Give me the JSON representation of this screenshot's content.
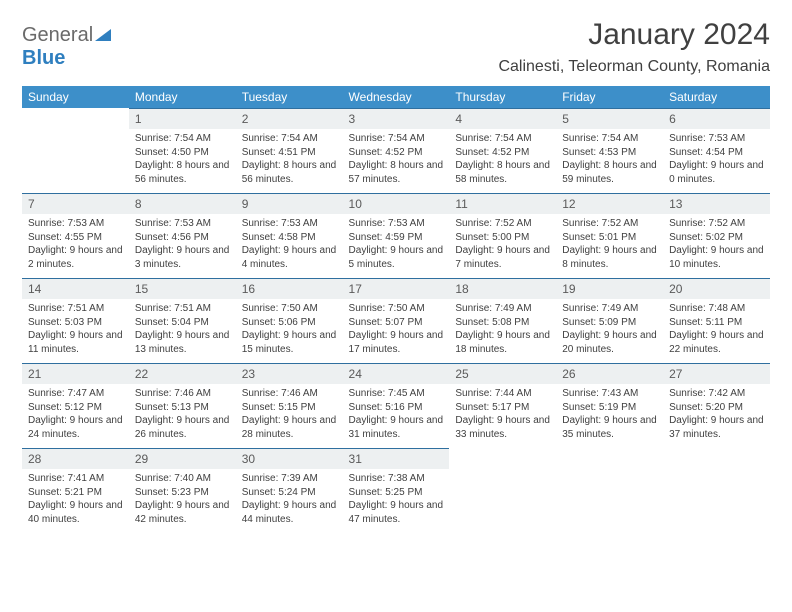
{
  "brand": {
    "g": "General",
    "b": "Blue"
  },
  "title": "January 2024",
  "location": "Calinesti, Teleorman County, Romania",
  "colors": {
    "header_bg": "#3d8fc9",
    "header_text": "#ffffff",
    "rule": "#2f6f9f",
    "daynum_bg": "#edf0f1",
    "text": "#3f3f3f"
  },
  "dow": [
    "Sunday",
    "Monday",
    "Tuesday",
    "Wednesday",
    "Thursday",
    "Friday",
    "Saturday"
  ],
  "weeks": [
    [
      null,
      {
        "d": "1",
        "rise": "7:54 AM",
        "set": "4:50 PM",
        "dl": "8 hours and 56 minutes."
      },
      {
        "d": "2",
        "rise": "7:54 AM",
        "set": "4:51 PM",
        "dl": "8 hours and 56 minutes."
      },
      {
        "d": "3",
        "rise": "7:54 AM",
        "set": "4:52 PM",
        "dl": "8 hours and 57 minutes."
      },
      {
        "d": "4",
        "rise": "7:54 AM",
        "set": "4:52 PM",
        "dl": "8 hours and 58 minutes."
      },
      {
        "d": "5",
        "rise": "7:54 AM",
        "set": "4:53 PM",
        "dl": "8 hours and 59 minutes."
      },
      {
        "d": "6",
        "rise": "7:53 AM",
        "set": "4:54 PM",
        "dl": "9 hours and 0 minutes."
      }
    ],
    [
      {
        "d": "7",
        "rise": "7:53 AM",
        "set": "4:55 PM",
        "dl": "9 hours and 2 minutes."
      },
      {
        "d": "8",
        "rise": "7:53 AM",
        "set": "4:56 PM",
        "dl": "9 hours and 3 minutes."
      },
      {
        "d": "9",
        "rise": "7:53 AM",
        "set": "4:58 PM",
        "dl": "9 hours and 4 minutes."
      },
      {
        "d": "10",
        "rise": "7:53 AM",
        "set": "4:59 PM",
        "dl": "9 hours and 5 minutes."
      },
      {
        "d": "11",
        "rise": "7:52 AM",
        "set": "5:00 PM",
        "dl": "9 hours and 7 minutes."
      },
      {
        "d": "12",
        "rise": "7:52 AM",
        "set": "5:01 PM",
        "dl": "9 hours and 8 minutes."
      },
      {
        "d": "13",
        "rise": "7:52 AM",
        "set": "5:02 PM",
        "dl": "9 hours and 10 minutes."
      }
    ],
    [
      {
        "d": "14",
        "rise": "7:51 AM",
        "set": "5:03 PM",
        "dl": "9 hours and 11 minutes."
      },
      {
        "d": "15",
        "rise": "7:51 AM",
        "set": "5:04 PM",
        "dl": "9 hours and 13 minutes."
      },
      {
        "d": "16",
        "rise": "7:50 AM",
        "set": "5:06 PM",
        "dl": "9 hours and 15 minutes."
      },
      {
        "d": "17",
        "rise": "7:50 AM",
        "set": "5:07 PM",
        "dl": "9 hours and 17 minutes."
      },
      {
        "d": "18",
        "rise": "7:49 AM",
        "set": "5:08 PM",
        "dl": "9 hours and 18 minutes."
      },
      {
        "d": "19",
        "rise": "7:49 AM",
        "set": "5:09 PM",
        "dl": "9 hours and 20 minutes."
      },
      {
        "d": "20",
        "rise": "7:48 AM",
        "set": "5:11 PM",
        "dl": "9 hours and 22 minutes."
      }
    ],
    [
      {
        "d": "21",
        "rise": "7:47 AM",
        "set": "5:12 PM",
        "dl": "9 hours and 24 minutes."
      },
      {
        "d": "22",
        "rise": "7:46 AM",
        "set": "5:13 PM",
        "dl": "9 hours and 26 minutes."
      },
      {
        "d": "23",
        "rise": "7:46 AM",
        "set": "5:15 PM",
        "dl": "9 hours and 28 minutes."
      },
      {
        "d": "24",
        "rise": "7:45 AM",
        "set": "5:16 PM",
        "dl": "9 hours and 31 minutes."
      },
      {
        "d": "25",
        "rise": "7:44 AM",
        "set": "5:17 PM",
        "dl": "9 hours and 33 minutes."
      },
      {
        "d": "26",
        "rise": "7:43 AM",
        "set": "5:19 PM",
        "dl": "9 hours and 35 minutes."
      },
      {
        "d": "27",
        "rise": "7:42 AM",
        "set": "5:20 PM",
        "dl": "9 hours and 37 minutes."
      }
    ],
    [
      {
        "d": "28",
        "rise": "7:41 AM",
        "set": "5:21 PM",
        "dl": "9 hours and 40 minutes."
      },
      {
        "d": "29",
        "rise": "7:40 AM",
        "set": "5:23 PM",
        "dl": "9 hours and 42 minutes."
      },
      {
        "d": "30",
        "rise": "7:39 AM",
        "set": "5:24 PM",
        "dl": "9 hours and 44 minutes."
      },
      {
        "d": "31",
        "rise": "7:38 AM",
        "set": "5:25 PM",
        "dl": "9 hours and 47 minutes."
      },
      null,
      null,
      null
    ]
  ],
  "labels": {
    "sunrise": "Sunrise: ",
    "sunset": "Sunset: ",
    "daylight": "Daylight: "
  }
}
